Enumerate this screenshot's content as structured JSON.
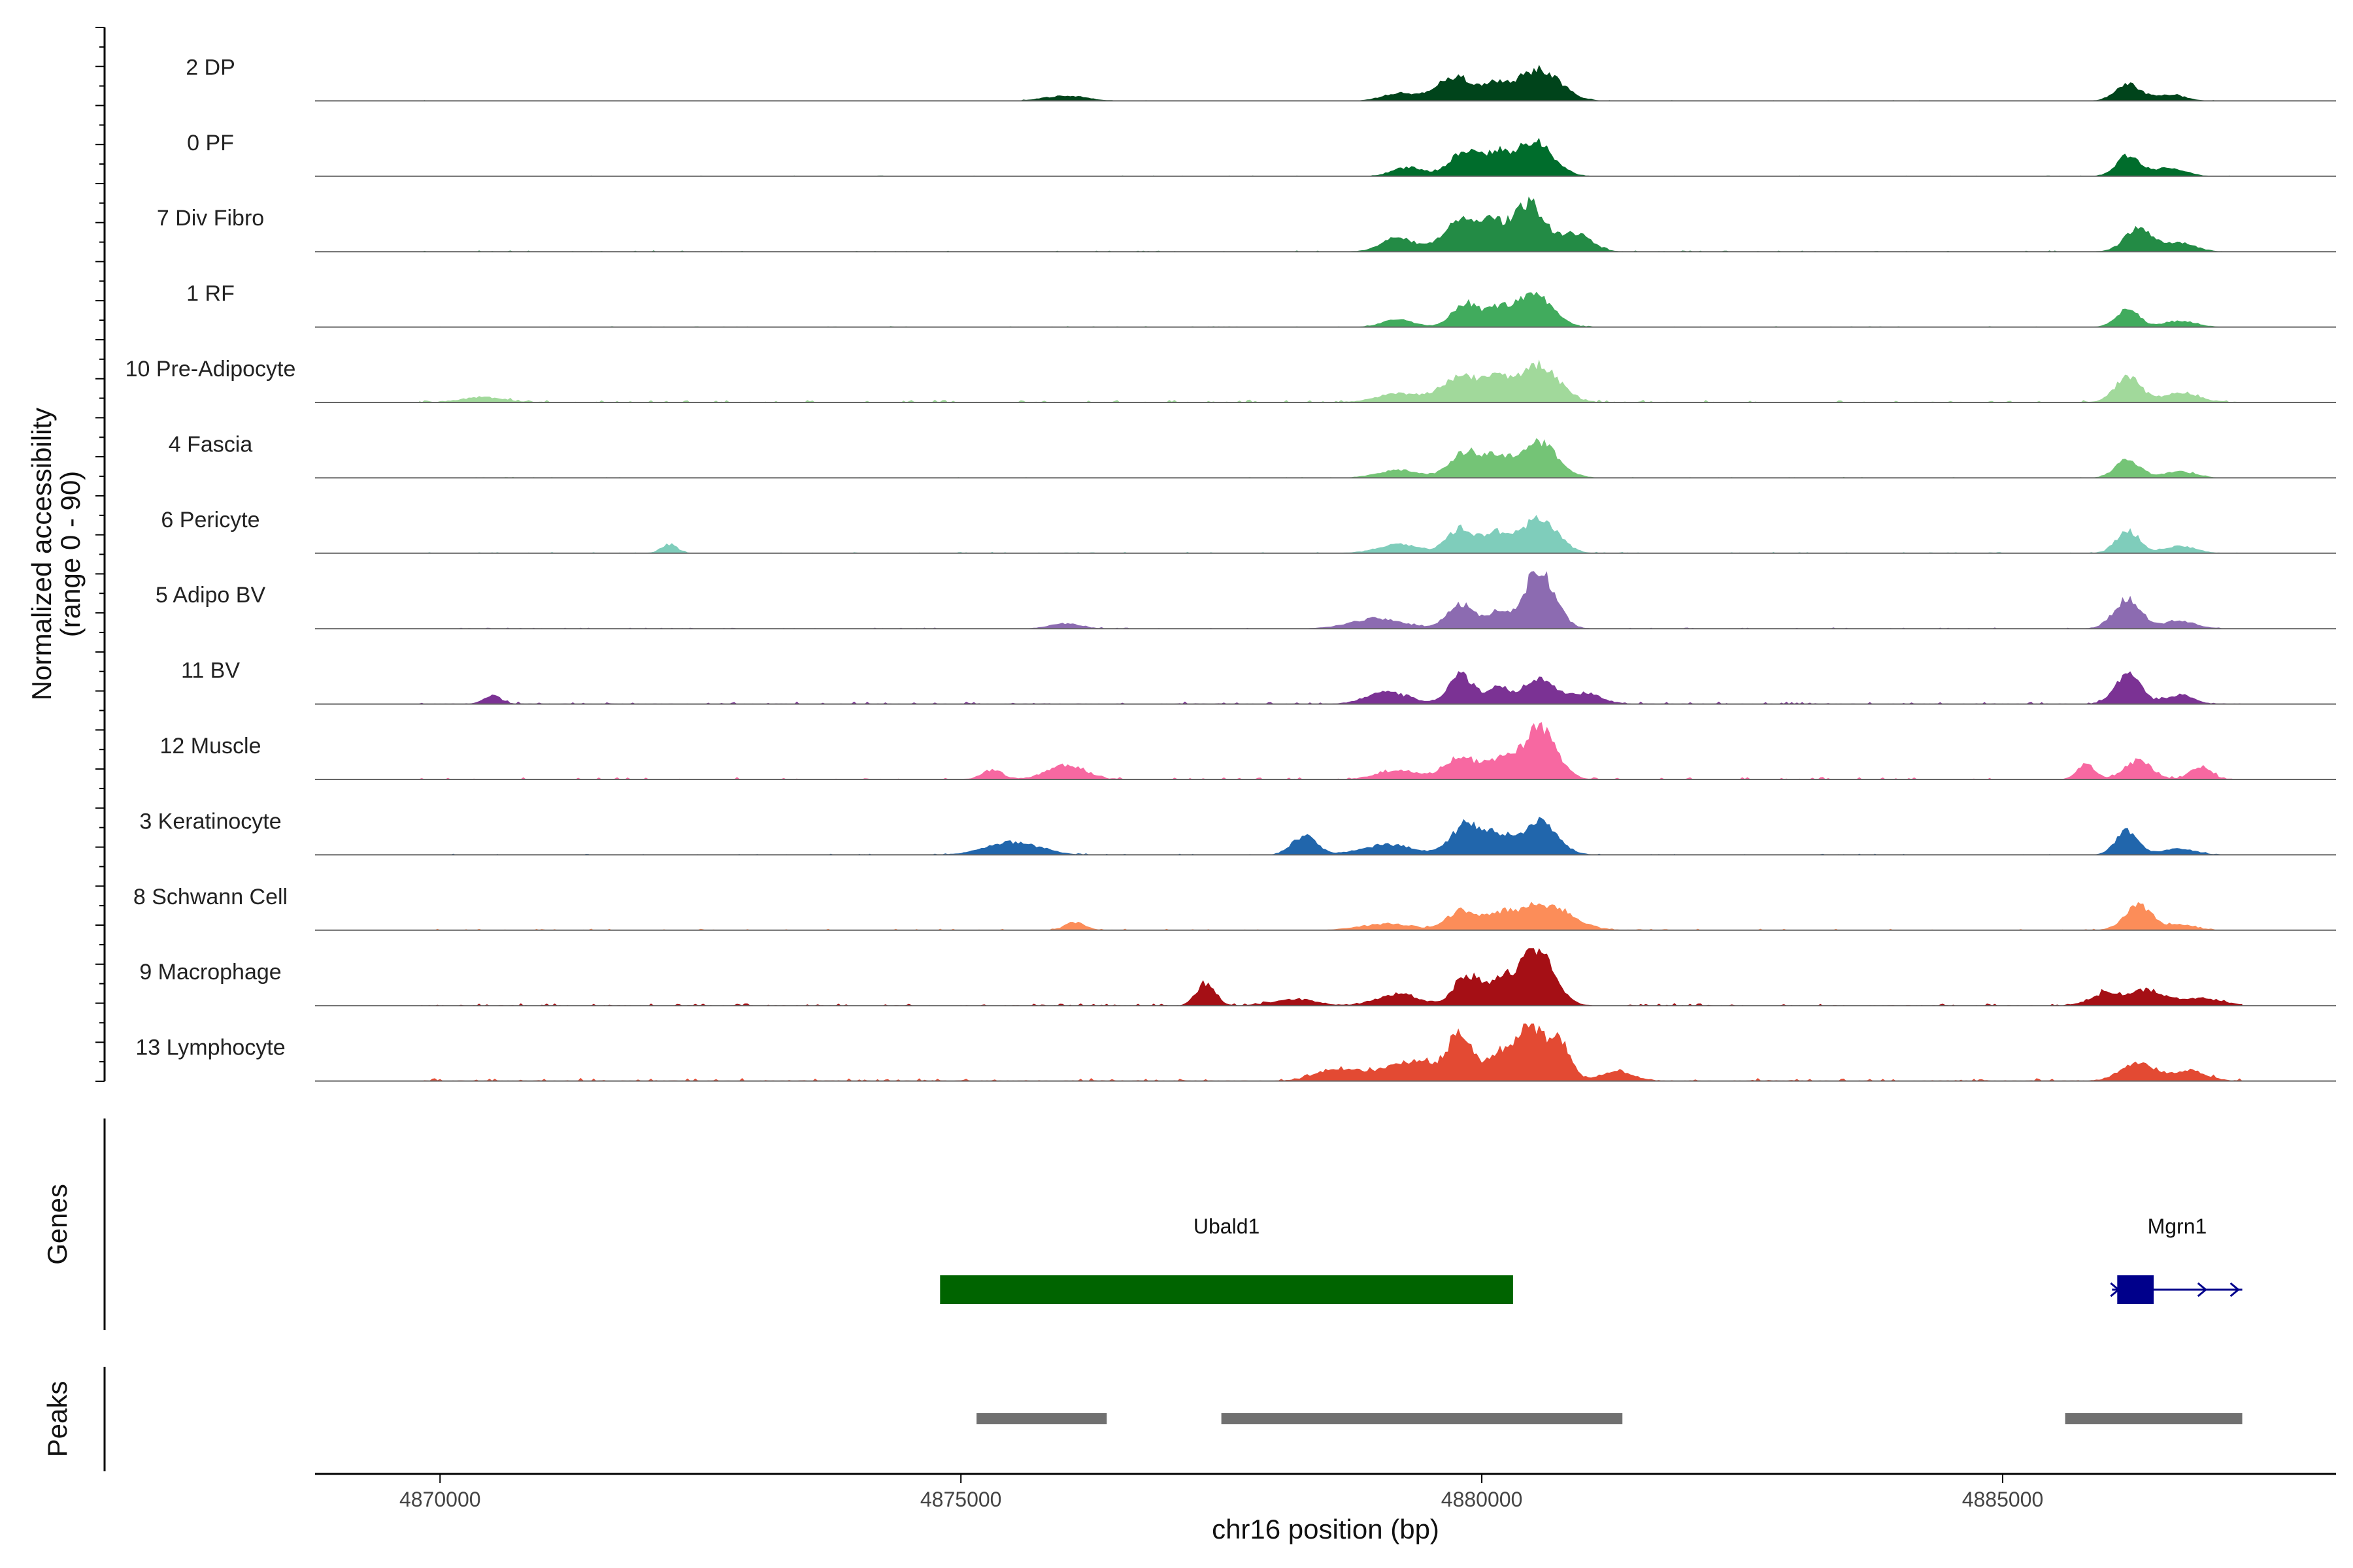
{
  "chart_data": {
    "type": "area",
    "ylabel": "Normalized accessibility",
    "ylabel_range": "(range 0 - 90)",
    "xlabel": "chr16 position (bp)",
    "xlim": [
      4868800,
      4888200
    ],
    "x_ticks": [
      4870000,
      4875000,
      4880000,
      4885000
    ],
    "x_tick_labels": [
      "4870000",
      "4875000",
      "4880000",
      "4885000"
    ],
    "signal_extent": [
      4869800,
      4887300
    ],
    "ylim": [
      0,
      90
    ],
    "series": [
      {
        "name": "2 DP",
        "color": "#00441b",
        "noise": 1.2,
        "peaks": [
          [
            4879750,
            180,
            38
          ],
          [
            4880550,
            200,
            50
          ],
          [
            4880150,
            120,
            22
          ],
          [
            4879200,
            160,
            12
          ],
          [
            4886200,
            120,
            26
          ],
          [
            4886600,
            150,
            10
          ],
          [
            4876000,
            200,
            8
          ]
        ]
      },
      {
        "name": "0 PF",
        "color": "#006d2c",
        "noise": 1.2,
        "peaks": [
          [
            4879850,
            150,
            40
          ],
          [
            4880500,
            180,
            55
          ],
          [
            4880150,
            100,
            28
          ],
          [
            4879300,
            150,
            14
          ],
          [
            4886200,
            110,
            32
          ],
          [
            4886600,
            150,
            14
          ]
        ]
      },
      {
        "name": "7 Div Fibro",
        "color": "#238b45",
        "noise": 2.0,
        "peaks": [
          [
            4879800,
            160,
            50
          ],
          [
            4880450,
            150,
            76
          ],
          [
            4880100,
            120,
            38
          ],
          [
            4879200,
            160,
            22
          ],
          [
            4880900,
            150,
            28
          ],
          [
            4886300,
            130,
            36
          ],
          [
            4886700,
            150,
            14
          ]
        ]
      },
      {
        "name": "1 RF",
        "color": "#41ab5d",
        "noise": 1.5,
        "peaks": [
          [
            4879850,
            130,
            38
          ],
          [
            4880500,
            170,
            55
          ],
          [
            4880150,
            100,
            25
          ],
          [
            4879200,
            150,
            12
          ],
          [
            4886200,
            110,
            28
          ],
          [
            4886700,
            150,
            10
          ]
        ]
      },
      {
        "name": "10 Pre-Adipocyte",
        "color": "#a1d99b",
        "noise": 4.5,
        "peaks": [
          [
            4879800,
            180,
            42
          ],
          [
            4880550,
            190,
            58
          ],
          [
            4880150,
            120,
            30
          ],
          [
            4879200,
            200,
            14
          ],
          [
            4886200,
            120,
            40
          ],
          [
            4886700,
            180,
            14
          ],
          [
            4870400,
            200,
            8
          ]
        ]
      },
      {
        "name": "4 Fascia",
        "color": "#74c476",
        "noise": 1.5,
        "peaks": [
          [
            4879850,
            150,
            40
          ],
          [
            4880550,
            180,
            55
          ],
          [
            4880150,
            120,
            28
          ],
          [
            4879200,
            200,
            12
          ],
          [
            4886200,
            120,
            28
          ],
          [
            4886700,
            150,
            10
          ]
        ]
      },
      {
        "name": "6 Pericyte",
        "color": "#7fcdbb",
        "noise": 2.0,
        "peaks": [
          [
            4879800,
            130,
            40
          ],
          [
            4880550,
            170,
            55
          ],
          [
            4880150,
            120,
            30
          ],
          [
            4879200,
            200,
            14
          ],
          [
            4886200,
            110,
            36
          ],
          [
            4886700,
            150,
            12
          ],
          [
            4872200,
            80,
            14
          ]
        ]
      },
      {
        "name": "5 Adipo BV",
        "color": "#8c6bb1",
        "noise": 2.0,
        "peaks": [
          [
            4879800,
            130,
            38
          ],
          [
            4880550,
            150,
            90
          ],
          [
            4880150,
            100,
            24
          ],
          [
            4879000,
            250,
            16
          ],
          [
            4886200,
            130,
            46
          ],
          [
            4886700,
            150,
            12
          ],
          [
            4876000,
            150,
            8
          ]
        ]
      },
      {
        "name": "11 BV",
        "color": "#7b3294",
        "noise": 4.0,
        "peaks": [
          [
            4879800,
            120,
            45
          ],
          [
            4880550,
            160,
            40
          ],
          [
            4880150,
            100,
            25
          ],
          [
            4879100,
            200,
            18
          ],
          [
            4881000,
            150,
            16
          ],
          [
            4886200,
            120,
            48
          ],
          [
            4886700,
            130,
            14
          ],
          [
            4870500,
            80,
            14
          ]
        ]
      },
      {
        "name": "12 Muscle",
        "color": "#f768a1",
        "noise": 4.0,
        "peaks": [
          [
            4879800,
            150,
            35
          ],
          [
            4880550,
            160,
            82
          ],
          [
            4880150,
            120,
            28
          ],
          [
            4879200,
            200,
            14
          ],
          [
            4876000,
            180,
            22
          ],
          [
            4875300,
            100,
            14
          ],
          [
            4885800,
            80,
            24
          ],
          [
            4886300,
            130,
            30
          ],
          [
            4886900,
            100,
            20
          ]
        ]
      },
      {
        "name": "3 Keratinocyte",
        "color": "#2166ac",
        "noise": 2.0,
        "peaks": [
          [
            4879850,
            140,
            48
          ],
          [
            4880550,
            170,
            52
          ],
          [
            4880150,
            120,
            28
          ],
          [
            4879100,
            250,
            16
          ],
          [
            4878300,
            120,
            30
          ],
          [
            4875500,
            250,
            20
          ],
          [
            4886200,
            110,
            38
          ],
          [
            4886700,
            150,
            10
          ]
        ]
      },
      {
        "name": "8 Schwann Cell",
        "color": "#fc8d59",
        "noise": 2.5,
        "peaks": [
          [
            4879800,
            130,
            30
          ],
          [
            4880600,
            250,
            40
          ],
          [
            4880150,
            150,
            20
          ],
          [
            4879100,
            250,
            10
          ],
          [
            4876100,
            100,
            12
          ],
          [
            4886300,
            130,
            38
          ],
          [
            4886700,
            150,
            8
          ]
        ]
      },
      {
        "name": "9 Macrophage",
        "color": "#a50f15",
        "noise": 4.0,
        "peaks": [
          [
            4879850,
            120,
            45
          ],
          [
            4880550,
            150,
            90
          ],
          [
            4880200,
            150,
            40
          ],
          [
            4879200,
            200,
            18
          ],
          [
            4877350,
            90,
            34
          ],
          [
            4878200,
            200,
            10
          ],
          [
            4886000,
            150,
            20
          ],
          [
            4886400,
            150,
            24
          ],
          [
            4886900,
            200,
            12
          ]
        ]
      },
      {
        "name": "13 Lymphocyte",
        "color": "#e34a33",
        "noise": 5.0,
        "peaks": [
          [
            4879800,
            110,
            70
          ],
          [
            4880450,
            130,
            92
          ],
          [
            4880750,
            100,
            62
          ],
          [
            4879350,
            300,
            30
          ],
          [
            4880150,
            100,
            40
          ],
          [
            4878600,
            200,
            18
          ],
          [
            4881300,
            150,
            16
          ],
          [
            4886300,
            160,
            30
          ],
          [
            4886800,
            150,
            16
          ]
        ]
      }
    ],
    "genes_track": {
      "label": "Genes",
      "genes": [
        {
          "name": "Ubald1",
          "start": 4874800,
          "end": 4880300,
          "color": "#006400",
          "strand": ""
        },
        {
          "name": "Mgrn1",
          "start": 4886050,
          "end": 4887300,
          "exon_start": 4886100,
          "exon_end": 4886450,
          "color": "#00008b",
          "strand": "+"
        }
      ]
    },
    "peaks_track": {
      "label": "Peaks",
      "color": "#707070",
      "peaks": [
        [
          4875150,
          4876400
        ],
        [
          4877500,
          4881350
        ],
        [
          4885600,
          4887300
        ]
      ]
    },
    "grid": false,
    "legend": "none"
  }
}
